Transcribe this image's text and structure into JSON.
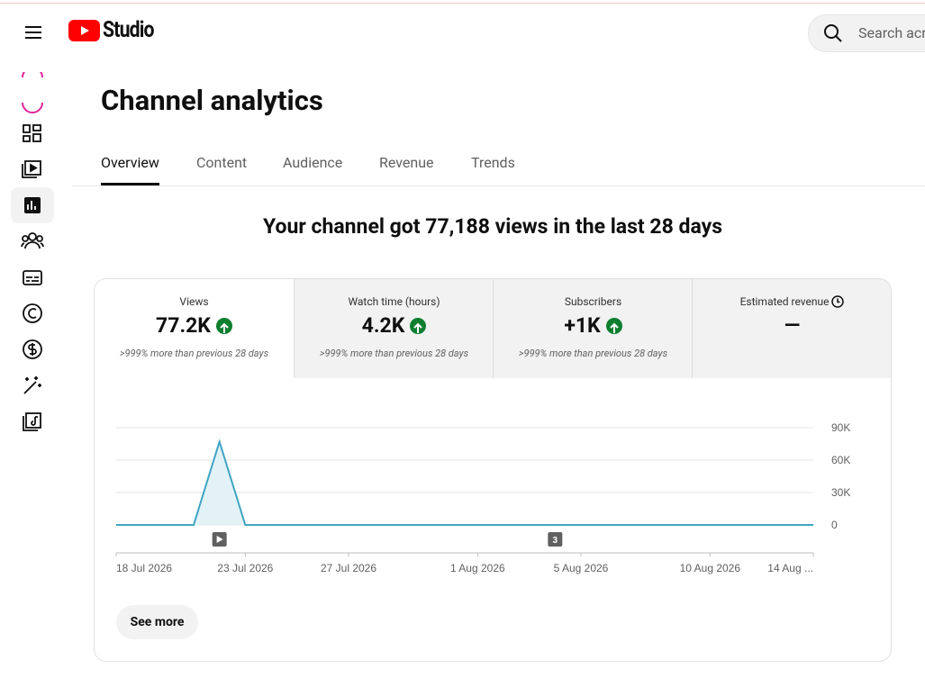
{
  "header": {
    "logo": "Studio",
    "search_placeholder": "Search acr"
  },
  "page": {
    "title": "Channel analytics",
    "tabs": [
      "Overview",
      "Content",
      "Audience",
      "Revenue",
      "Trends"
    ],
    "headline": "Your channel got 77,188 views in the last 28 days"
  },
  "metrics": [
    {
      "label": "Views",
      "value": "77.2K",
      "change": ">999% more than previous 28 days"
    },
    {
      "label": "Watch time (hours)",
      "value": "4.2K",
      "change": ">999% more than previous 28 days"
    },
    {
      "label": "Subscribers",
      "value": "+1K",
      "change": ">999% more than previous 28 days"
    },
    {
      "label": "Estimated revenue",
      "value": "—"
    }
  ],
  "chart_data": {
    "type": "line",
    "categories": [
      "18 Jul 2026",
      null,
      null,
      null,
      null,
      "23 Jul 2026",
      null,
      null,
      null,
      "27 Jul 2026",
      null,
      null,
      null,
      null,
      "1 Aug 2026",
      null,
      null,
      null,
      "5 Aug 2026",
      null,
      null,
      null,
      null,
      "10 Aug 2026",
      null,
      null,
      null,
      "14 Aug ..."
    ],
    "values": [
      0,
      0,
      0,
      0,
      77000,
      0,
      0,
      0,
      0,
      0,
      0,
      0,
      0,
      0,
      0,
      0,
      0,
      0,
      0,
      0,
      0,
      0,
      0,
      0,
      0,
      0,
      0,
      0
    ],
    "color": "#3fa5c3",
    "ylim": [
      0,
      90000
    ],
    "yticks": [
      0,
      {
        "value": 30000,
        "label": "30K"
      },
      {
        "value": 60000,
        "label": "60K"
      },
      {
        "value": 90000,
        "label": "90K"
      }
    ],
    "grid": true,
    "annotation": "3"
  },
  "button": "See more"
}
